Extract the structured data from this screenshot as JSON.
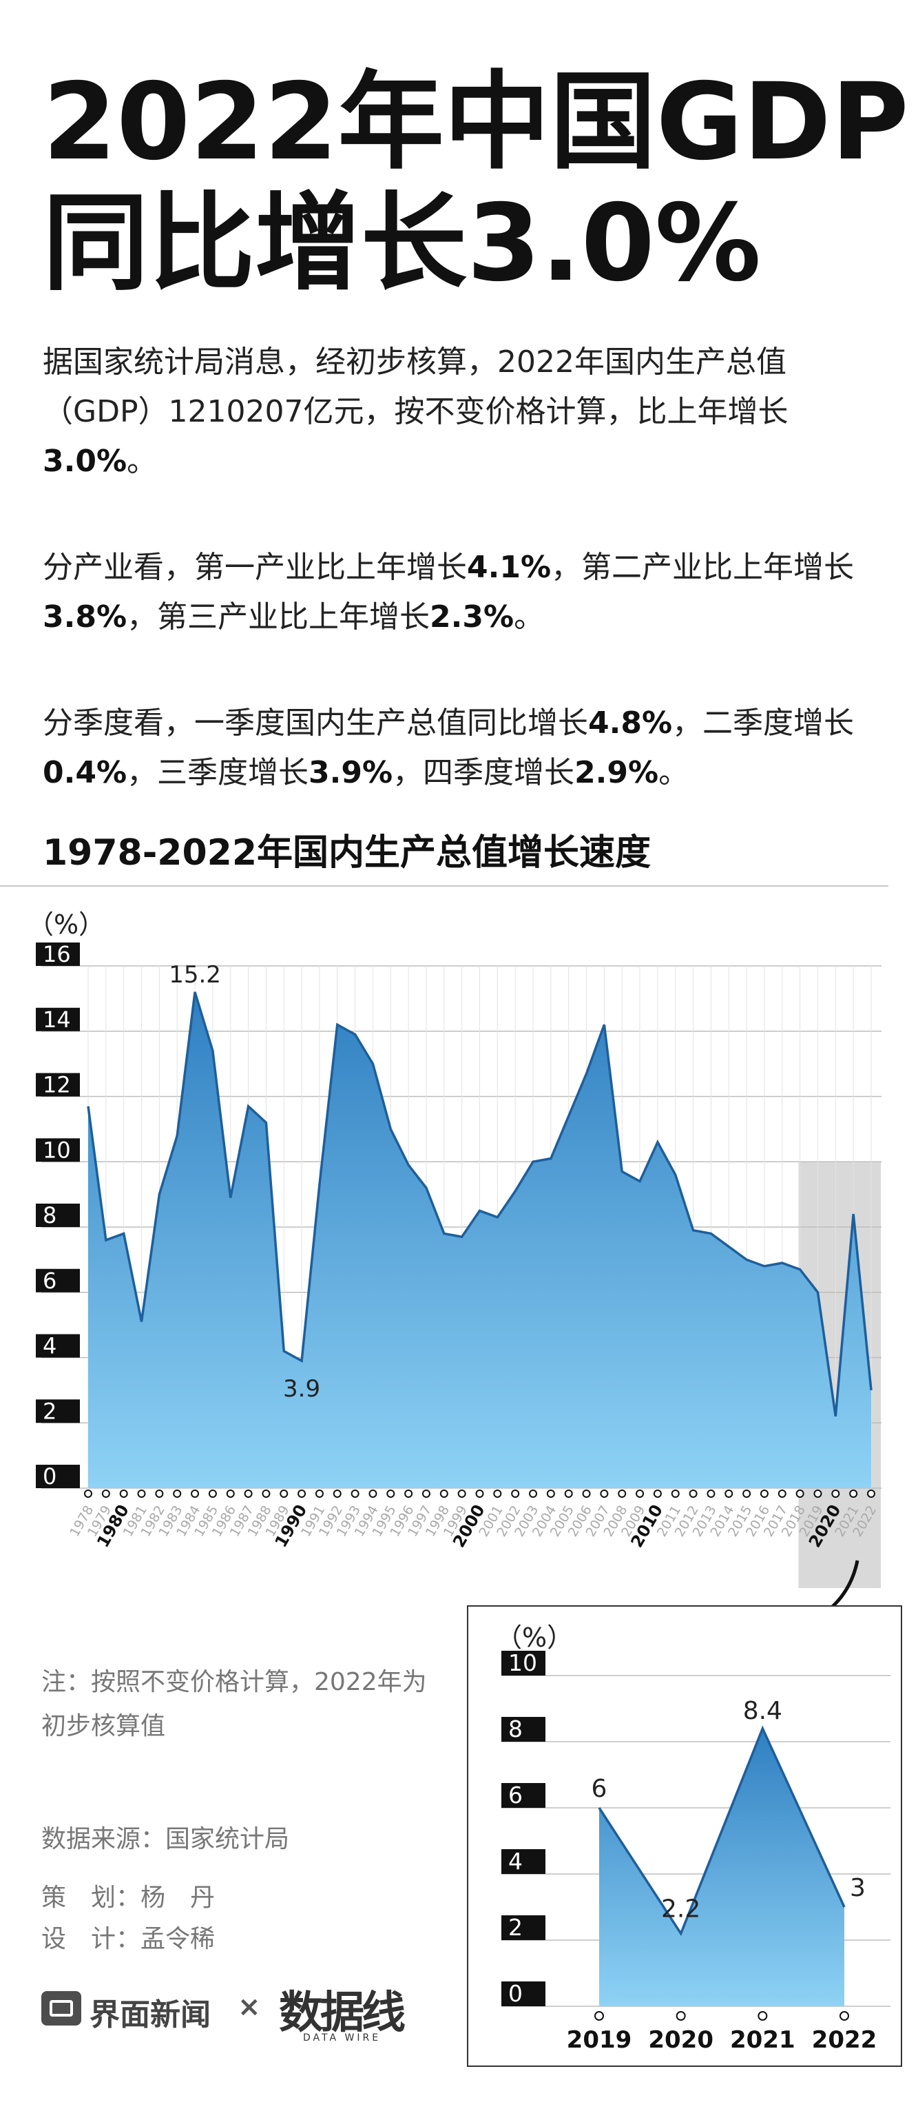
{
  "title": {
    "line1": "2022年中国GDP",
    "line2": "同比增长3.0%"
  },
  "paragraphs": {
    "p1": {
      "t1": "据国家统计局消息，经初步核算，2022年国内生产总值（GDP）1210207亿元，按不变价格计算，比上年增长",
      "b1": "3.0%",
      "t2": "。"
    },
    "p2": {
      "t1": "分产业看，第一产业比上年增长",
      "b1": "4.1%",
      "t2": "，第二产业比上年增长",
      "b2": "3.8%",
      "t3": "，第三产业比上年增长",
      "b3": "2.3%",
      "t4": "。"
    },
    "p3": {
      "t1": "分季度看，一季度国内生产总值同比增长",
      "b1": "4.8%",
      "t2": "，二季度增长",
      "b2": "0.4%",
      "t3": "，三季度增长",
      "b3": "3.9%",
      "t4": "，四季度增长",
      "b4": "2.9%",
      "t5": "。"
    }
  },
  "chart_heading": "1978-2022年国内生产总值增长速度",
  "note": "注：按照不变价格计算，2022年为初步核算值",
  "source": "数据来源：国家统计局",
  "credits": {
    "plan": "策　划：杨　丹",
    "design": "设　计：孟令稀"
  },
  "brand": {
    "jiemian": "界面新闻",
    "times": "×",
    "datawire": "数据线",
    "datawire_sub": "DATA WIRE"
  },
  "colors": {
    "area_top": "#2f7fc1",
    "area_bottom": "#8ed2f5",
    "line": "#1e5f9c",
    "tick_label_bg": "#111111",
    "highlight": "#d9d9d9"
  },
  "chart_data": [
    {
      "type": "area",
      "ylabel": "（%）",
      "ylim": [
        0,
        16
      ],
      "yticks": [
        0,
        2,
        4,
        6,
        8,
        10,
        12,
        14,
        16
      ],
      "grid": true,
      "x": [
        "1978",
        "1979",
        "1980",
        "1981",
        "1982",
        "1983",
        "1984",
        "1985",
        "1986",
        "1987",
        "1988",
        "1989",
        "1990",
        "1991",
        "1992",
        "1993",
        "1994",
        "1995",
        "1996",
        "1997",
        "1998",
        "1999",
        "2000",
        "2001",
        "2002",
        "2003",
        "2004",
        "2005",
        "2006",
        "2007",
        "2008",
        "2009",
        "2010",
        "2011",
        "2012",
        "2013",
        "2014",
        "2015",
        "2016",
        "2017",
        "2018",
        "2019",
        "2020",
        "2021",
        "2022"
      ],
      "bold_x": [
        "1980",
        "1990",
        "2000",
        "2010",
        "2020"
      ],
      "values": [
        11.7,
        7.6,
        7.8,
        5.1,
        9.0,
        10.8,
        15.2,
        13.4,
        8.9,
        11.7,
        11.2,
        4.2,
        3.9,
        9.3,
        14.2,
        13.9,
        13.0,
        11.0,
        9.9,
        9.2,
        7.8,
        7.7,
        8.5,
        8.3,
        9.1,
        10.0,
        10.1,
        11.4,
        12.7,
        14.2,
        9.7,
        9.4,
        10.6,
        9.6,
        7.9,
        7.8,
        7.4,
        7.0,
        6.8,
        6.9,
        6.7,
        6.0,
        2.2,
        8.4,
        3.0
      ],
      "annotations": [
        {
          "x": "1984",
          "label": "15.2"
        },
        {
          "x": "1990",
          "label": "3.9"
        }
      ],
      "highlight_range": [
        "2019",
        "2022"
      ]
    },
    {
      "type": "area",
      "ylabel": "（%）",
      "ylim": [
        0,
        10
      ],
      "yticks": [
        0,
        2,
        4,
        6,
        8,
        10
      ],
      "grid": true,
      "categories": [
        "2019",
        "2020",
        "2021",
        "2022"
      ],
      "values": [
        6,
        2.2,
        8.4,
        3
      ],
      "labels": [
        "6",
        "2.2",
        "8.4",
        "3"
      ]
    }
  ]
}
